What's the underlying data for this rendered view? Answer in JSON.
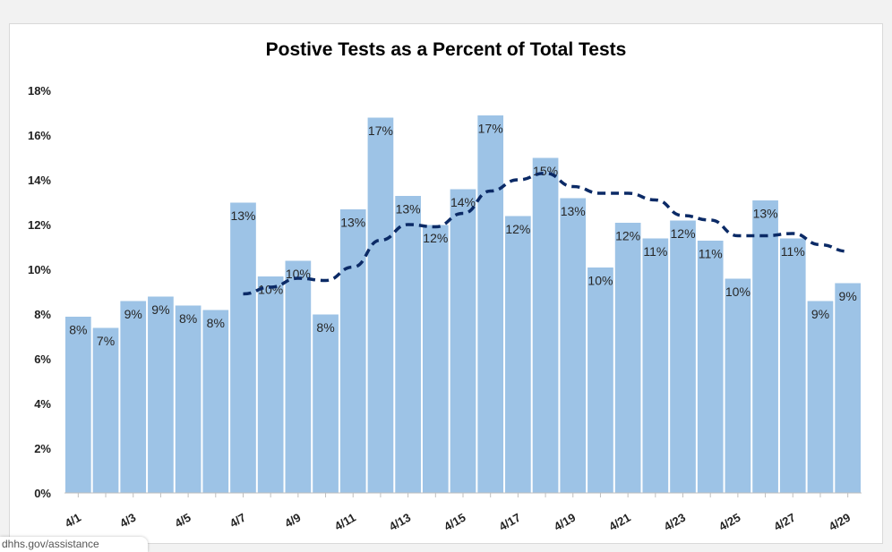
{
  "chart_data": {
    "type": "bar",
    "title": "Postive Tests as a Percent of Total Tests",
    "xlabel": "",
    "ylabel": "",
    "ylim": [
      0,
      18
    ],
    "y_ticks": [
      "0%",
      "2%",
      "4%",
      "6%",
      "8%",
      "10%",
      "12%",
      "14%",
      "16%",
      "18%"
    ],
    "categories": [
      "4/1",
      "4/2",
      "4/3",
      "4/4",
      "4/5",
      "4/6",
      "4/7",
      "4/8",
      "4/9",
      "4/10",
      "4/11",
      "4/12",
      "4/13",
      "4/14",
      "4/15",
      "4/16",
      "4/17",
      "4/18",
      "4/19",
      "4/20",
      "4/21",
      "4/22",
      "4/23",
      "4/24",
      "4/25",
      "4/26",
      "4/27",
      "4/28",
      "4/29"
    ],
    "x_tick_labels": [
      "4/1",
      "",
      "4/3",
      "",
      "4/5",
      "",
      "4/7",
      "",
      "4/9",
      "",
      "4/11",
      "",
      "4/13",
      "",
      "4/15",
      "",
      "4/17",
      "",
      "4/19",
      "",
      "4/21",
      "",
      "4/23",
      "",
      "4/25",
      "",
      "4/27",
      "",
      "4/29"
    ],
    "series": [
      {
        "type": "bar",
        "values": [
          7.9,
          7.4,
          8.6,
          8.8,
          8.4,
          8.2,
          13.0,
          9.7,
          10.4,
          8.0,
          12.7,
          16.8,
          13.3,
          12.0,
          13.6,
          16.9,
          12.4,
          15.0,
          13.2,
          10.1,
          12.1,
          11.4,
          12.2,
          11.3,
          9.6,
          13.1,
          11.4,
          8.6,
          9.4
        ],
        "data_labels": [
          "8%",
          "7%",
          "9%",
          "9%",
          "8%",
          "8%",
          "13%",
          "10%",
          "10%",
          "8%",
          "13%",
          "17%",
          "13%",
          "12%",
          "14%",
          "17%",
          "12%",
          "15%",
          "13%",
          "10%",
          "12%",
          "11%",
          "12%",
          "11%",
          "10%",
          "13%",
          "11%",
          "9%",
          "9%"
        ],
        "color": "#9dc3e6"
      },
      {
        "type": "line",
        "style": "dashed",
        "values": [
          null,
          null,
          null,
          null,
          null,
          null,
          8.9,
          9.2,
          9.6,
          9.5,
          10.1,
          11.3,
          12.0,
          11.9,
          12.5,
          13.5,
          14.0,
          14.3,
          13.7,
          13.4,
          13.4,
          13.1,
          12.4,
          12.2,
          11.5,
          11.5,
          11.6,
          11.1,
          10.8
        ],
        "color": "#0b2a66"
      }
    ],
    "grid": false,
    "legend": "none"
  },
  "footer": {
    "url_text": "dhhs.gov/assistance"
  }
}
